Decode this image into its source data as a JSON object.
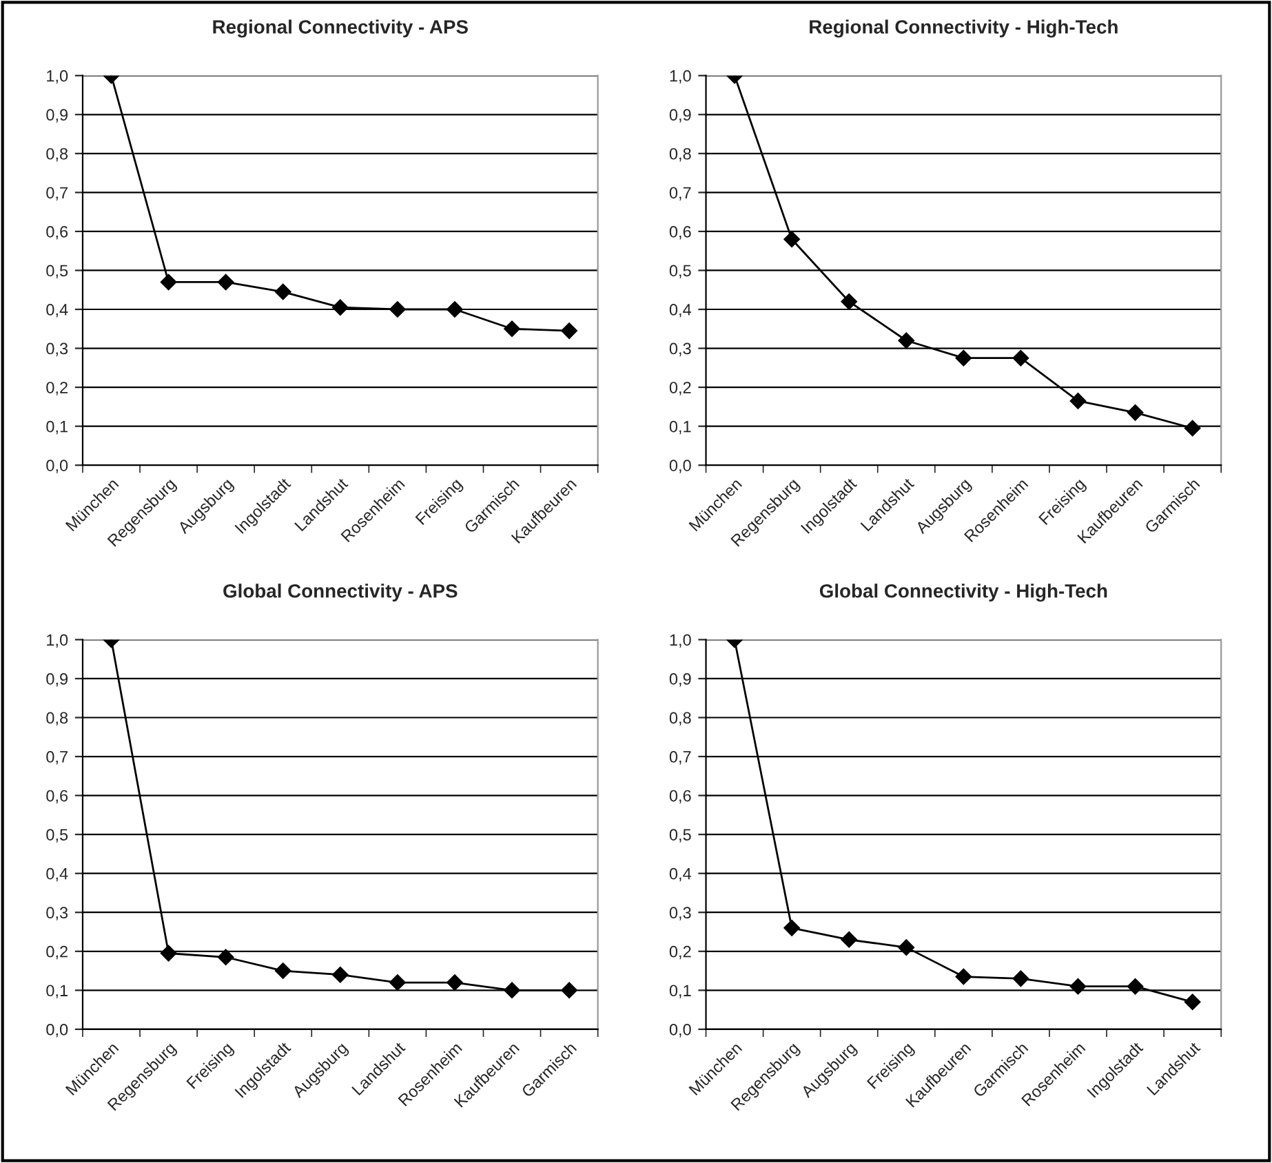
{
  "chart_data": [
    {
      "type": "line",
      "title": "Regional Connectivity - APS",
      "categories": [
        "München",
        "Regensburg",
        "Augsburg",
        "Ingolstadt",
        "Landshut",
        "Rosenheim",
        "Freising",
        "Garmisch",
        "Kaufbeuren"
      ],
      "series": [
        {
          "color": "#000000",
          "values": [
            1.0,
            0.47,
            0.47,
            0.445,
            0.405,
            0.4,
            0.4,
            0.35,
            0.345
          ]
        }
      ],
      "ylim": [
        0,
        1
      ],
      "yticks": [
        {
          "value": 0,
          "label": "0,0"
        },
        {
          "value": 0.1,
          "label": "0,1"
        },
        {
          "value": 0.2,
          "label": "0,2"
        },
        {
          "value": 0.3,
          "label": "0,3"
        },
        {
          "value": 0.4,
          "label": "0,4"
        },
        {
          "value": 0.5,
          "label": "0,5"
        },
        {
          "value": 0.6,
          "label": "0,6"
        },
        {
          "value": 0.7,
          "label": "0,7"
        },
        {
          "value": 0.8,
          "label": "0,8"
        },
        {
          "value": 0.9,
          "label": "0,9"
        },
        {
          "value": 1,
          "label": "1,0"
        }
      ],
      "grid": "y",
      "marker": "diamond",
      "line_style": "solid"
    },
    {
      "type": "line",
      "title": "Regional Connectivity - High-Tech",
      "categories": [
        "München",
        "Regensburg",
        "Ingolstadt",
        "Landshut",
        "Augsburg",
        "Rosenheim",
        "Freising",
        "Kaufbeuren",
        "Garmisch"
      ],
      "series": [
        {
          "color": "#000000",
          "values": [
            1.0,
            0.58,
            0.42,
            0.32,
            0.275,
            0.275,
            0.165,
            0.135,
            0.095
          ]
        }
      ],
      "ylim": [
        0,
        1
      ],
      "yticks": [
        {
          "value": 0,
          "label": "0,0"
        },
        {
          "value": 0.1,
          "label": "0,1"
        },
        {
          "value": 0.2,
          "label": "0,2"
        },
        {
          "value": 0.3,
          "label": "0,3"
        },
        {
          "value": 0.4,
          "label": "0,4"
        },
        {
          "value": 0.5,
          "label": "0,5"
        },
        {
          "value": 0.6,
          "label": "0,6"
        },
        {
          "value": 0.7,
          "label": "0,7"
        },
        {
          "value": 0.8,
          "label": "0,8"
        },
        {
          "value": 0.9,
          "label": "0,9"
        },
        {
          "value": 1,
          "label": "1,0"
        }
      ],
      "grid": "y",
      "marker": "diamond",
      "line_style": "solid"
    },
    {
      "type": "line",
      "title": "Global Connectivity - APS",
      "categories": [
        "München",
        "Regensburg",
        "Freising",
        "Ingolstadt",
        "Augsburg",
        "Landshut",
        "Rosenheim",
        "Kaufbeuren",
        "Garmisch"
      ],
      "series": [
        {
          "color": "#000000",
          "values": [
            1.0,
            0.195,
            0.185,
            0.15,
            0.14,
            0.12,
            0.12,
            0.1,
            0.1
          ]
        }
      ],
      "ylim": [
        0,
        1
      ],
      "yticks": [
        {
          "value": 0,
          "label": "0,0"
        },
        {
          "value": 0.1,
          "label": "0,1"
        },
        {
          "value": 0.2,
          "label": "0,2"
        },
        {
          "value": 0.3,
          "label": "0,3"
        },
        {
          "value": 0.4,
          "label": "0,4"
        },
        {
          "value": 0.5,
          "label": "0,5"
        },
        {
          "value": 0.6,
          "label": "0,6"
        },
        {
          "value": 0.7,
          "label": "0,7"
        },
        {
          "value": 0.8,
          "label": "0,8"
        },
        {
          "value": 0.9,
          "label": "0,9"
        },
        {
          "value": 1,
          "label": "1,0"
        }
      ],
      "grid": "y",
      "marker": "diamond",
      "line_style": "solid"
    },
    {
      "type": "line",
      "title": "Global Connectivity - High-Tech",
      "categories": [
        "München",
        "Regensburg",
        "Augsburg",
        "Freising",
        "Kaufbeuren",
        "Garmisch",
        "Rosenheim",
        "Ingolstadt",
        "Landshut"
      ],
      "series": [
        {
          "color": "#000000",
          "values": [
            1.0,
            0.26,
            0.23,
            0.21,
            0.135,
            0.13,
            0.11,
            0.11,
            0.07
          ]
        }
      ],
      "ylim": [
        0,
        1
      ],
      "yticks": [
        {
          "value": 0,
          "label": "0,0"
        },
        {
          "value": 0.1,
          "label": "0,1"
        },
        {
          "value": 0.2,
          "label": "0,2"
        },
        {
          "value": 0.3,
          "label": "0,3"
        },
        {
          "value": 0.4,
          "label": "0,4"
        },
        {
          "value": 0.5,
          "label": "0,5"
        },
        {
          "value": 0.6,
          "label": "0,6"
        },
        {
          "value": 0.7,
          "label": "0,7"
        },
        {
          "value": 0.8,
          "label": "0,8"
        },
        {
          "value": 0.9,
          "label": "0,9"
        },
        {
          "value": 1,
          "label": "1,0"
        }
      ],
      "grid": "y",
      "marker": "diamond",
      "line_style": "solid"
    }
  ]
}
